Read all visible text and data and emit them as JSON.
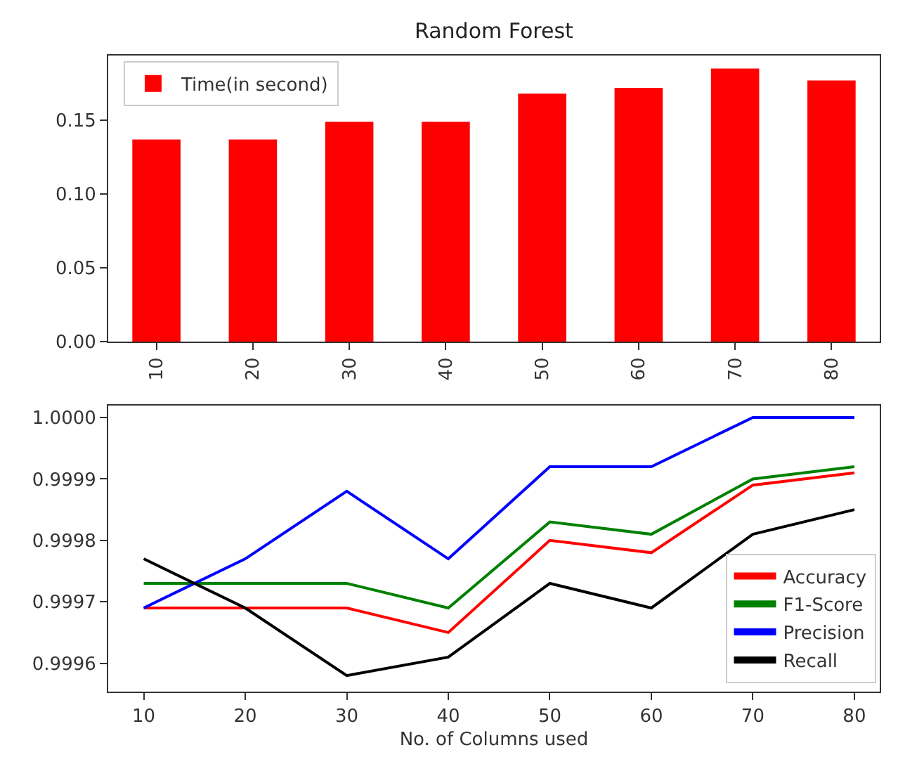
{
  "chart_data": [
    {
      "type": "bar",
      "title": "Random Forest",
      "categories": [
        "10",
        "20",
        "30",
        "40",
        "50",
        "60",
        "70",
        "80"
      ],
      "series": [
        {
          "name": "Time(in second)",
          "color": "#ff0000",
          "values": [
            0.137,
            0.137,
            0.149,
            0.149,
            0.168,
            0.172,
            0.185,
            0.177
          ]
        }
      ],
      "ylim": [
        0,
        0.194
      ],
      "yticks": [
        {
          "value": 0,
          "label": "0.00"
        },
        {
          "value": 0.05,
          "label": "0.05"
        },
        {
          "value": 0.1,
          "label": "0.10"
        },
        {
          "value": 0.15,
          "label": "0.15"
        }
      ],
      "legend": "top left"
    },
    {
      "type": "line",
      "xlabel": "No. of Columns used",
      "x": [
        10,
        20,
        30,
        40,
        50,
        60,
        70,
        80
      ],
      "series": [
        {
          "name": "Accuracy",
          "color": "#ff0000",
          "values": [
            0.99969,
            0.99969,
            0.99969,
            0.99965,
            0.9998,
            0.99978,
            0.99989,
            0.99991
          ]
        },
        {
          "name": "F1-Score",
          "color": "#008000",
          "values": [
            0.99973,
            0.99973,
            0.99973,
            0.99969,
            0.99983,
            0.99981,
            0.9999,
            0.99992
          ]
        },
        {
          "name": "Precision",
          "color": "#0000ff",
          "values": [
            0.99969,
            0.99977,
            0.99988,
            0.99977,
            0.99992,
            0.99992,
            1.0,
            1.0
          ]
        },
        {
          "name": "Recall",
          "color": "#000000",
          "values": [
            0.99977,
            0.99969,
            0.99958,
            0.99961,
            0.99973,
            0.99969,
            0.99981,
            0.99985
          ]
        }
      ],
      "xlim": [
        6.5,
        82.5
      ],
      "xticks": [
        10,
        20,
        30,
        40,
        50,
        60,
        70,
        80
      ],
      "ylim": [
        0.999554,
        1.00002
      ],
      "yticks": [
        {
          "value": 0.9996,
          "label": "0.9996"
        },
        {
          "value": 0.9997,
          "label": "0.9997"
        },
        {
          "value": 0.9998,
          "label": "0.9998"
        },
        {
          "value": 0.9999,
          "label": "0.9999"
        },
        {
          "value": 1.0,
          "label": "1.0000"
        }
      ],
      "legend": "bottom right",
      "marker": "none",
      "line_style": "solid"
    }
  ]
}
